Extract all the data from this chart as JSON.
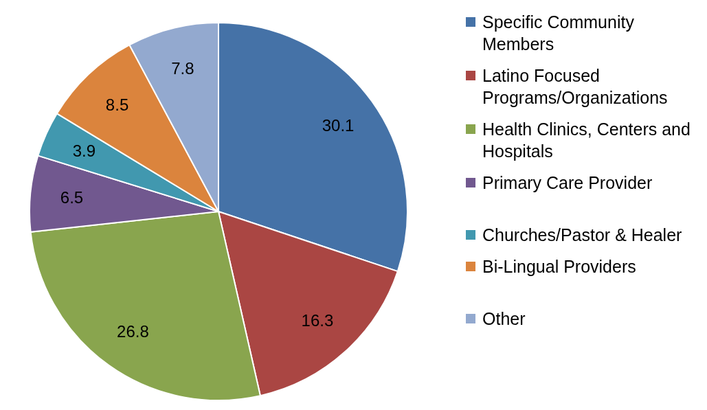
{
  "chart_data": {
    "type": "pie",
    "categories": [
      "Specific Community Members",
      "Latino Focused Programs/Organizations",
      "Health Clinics, Centers and Hospitals",
      "Primary Care Provider",
      "Churches/Pastor & Healer",
      "Bi-Lingual Providers",
      "Other"
    ],
    "values": [
      30.1,
      16.3,
      26.8,
      6.5,
      3.9,
      8.5,
      7.8
    ],
    "colors": [
      "#4572a7",
      "#aa4643",
      "#89a54e",
      "#71588f",
      "#4198af",
      "#db843d",
      "#93a9cf"
    ],
    "data_labels": true,
    "legend": "right"
  }
}
